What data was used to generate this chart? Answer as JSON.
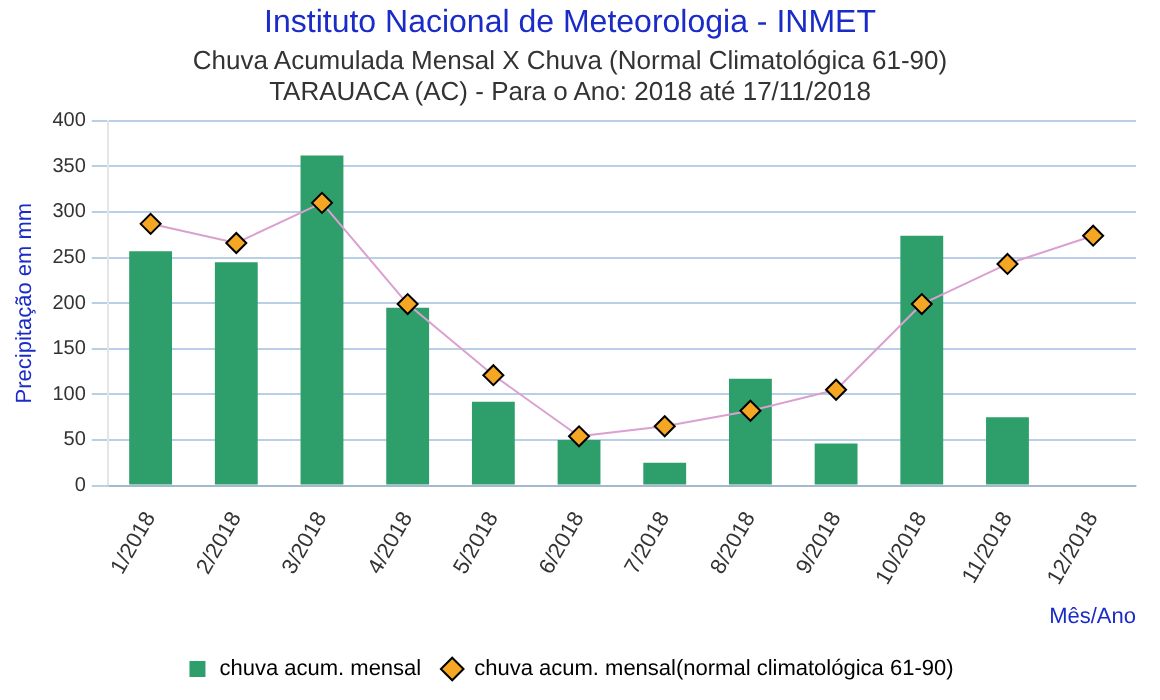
{
  "chart_data": {
    "type": "bar",
    "title": "Instituto Nacional de Meteorologia - INMET",
    "subtitle": "Chuva Acumulada Mensal X Chuva (Normal Climatológica 61-90)\nTARAUACA (AC) - Para o Ano: 2018 até 17/11/2018",
    "xlabel": "Mês/Ano",
    "ylabel": "Precipitação em mm",
    "categories": [
      "1/2018",
      "2/2018",
      "3/2018",
      "4/2018",
      "5/2018",
      "6/2018",
      "7/2018",
      "8/2018",
      "9/2018",
      "10/2018",
      "11/2018",
      "12/2018"
    ],
    "series": [
      {
        "name": "chuva acum. mensal",
        "color": "#2e9e6a",
        "values": [
          257,
          245,
          362,
          195,
          92,
          50,
          25,
          117,
          46,
          274,
          75,
          null
        ]
      },
      {
        "name": "chuva acum. mensal(normal climatológica 61-90)",
        "type": "line",
        "color": "#d9a0d0",
        "marker": "diamond",
        "values": [
          287,
          266,
          310,
          199,
          121,
          54,
          65,
          82,
          105,
          199,
          243,
          274
        ]
      }
    ],
    "ylim": [
      0,
      400
    ],
    "yticks": [
      0,
      50,
      100,
      150,
      200,
      250,
      300,
      350,
      400
    ],
    "grid": "y",
    "legend": "bottom"
  }
}
